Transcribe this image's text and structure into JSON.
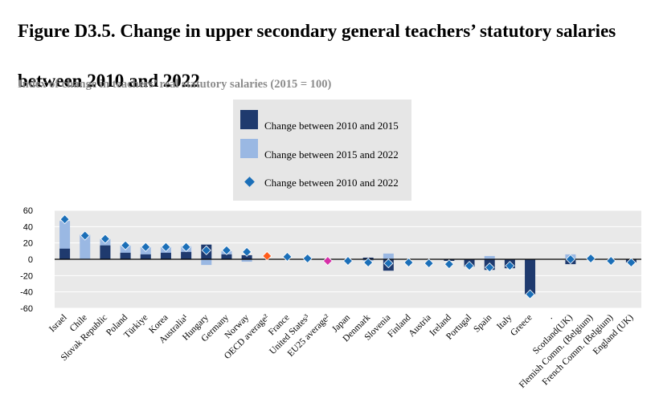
{
  "title": "Figure D3.5. Change in upper secondary general teachers’ statutory salaries between 2010 and 2022",
  "subtitle": "Index of change in teachers’ real statutory salaries (2015 = 100)",
  "colors": {
    "bar_2010_2015": "#1f3a6e",
    "bar_2015_2022": "#9ab8e3",
    "diamond": "#1b6fb8",
    "diamond_oecd": "#ff5c1a",
    "diamond_eu": "#d62fa8",
    "plot_bg": "#e9e9e9",
    "legend_bg": "#e6e6e6"
  },
  "legend": {
    "items": [
      {
        "label": "Change between 2010 and 2015",
        "marker": "dark-bar"
      },
      {
        "label": "Change between 2015 and 2022",
        "marker": "light-bar"
      },
      {
        "label": "Change between 2010 and 2022",
        "marker": "diamond"
      }
    ]
  },
  "chart_data": {
    "type": "bar",
    "ylim": [
      -60,
      60
    ],
    "yticks": [
      60,
      40,
      20,
      0,
      -20,
      -40,
      -60
    ],
    "grid": true,
    "legend_position": "top-center",
    "categories": [
      "Israel",
      "Chile",
      "Slovak Republic",
      "Poland",
      "Türkiye",
      "Korea",
      "Australia¹",
      "Hungary",
      "Germany",
      "Norway",
      "OECD average²",
      "France",
      "United States³",
      "EU25 average²",
      "Japan",
      "Denmark",
      "Slovenia",
      "Finland",
      "Austria",
      "Ireland",
      "Portugal",
      "Spain",
      "Italy",
      "Greece",
      ".",
      "Scotland(UK)",
      "Flemish Comm. (Belgium)",
      "French Comm. (Belgium)",
      "England (UK)"
    ],
    "series": [
      {
        "name": "Change between 2010 and 2015",
        "values": [
          13,
          null,
          17,
          8,
          6,
          8,
          9,
          18,
          6,
          5,
          null,
          null,
          null,
          null,
          null,
          2,
          -14,
          null,
          null,
          -2,
          -9,
          -13,
          -11,
          -43,
          null,
          -6,
          null,
          null,
          -4
        ]
      },
      {
        "name": "Change between 2015 and 2022",
        "values": [
          47,
          30,
          25,
          17,
          15,
          15,
          16,
          -7,
          10,
          -3,
          null,
          null,
          null,
          null,
          null,
          -2,
          7,
          null,
          null,
          null,
          null,
          4,
          null,
          null,
          null,
          6,
          null,
          null,
          null
        ]
      },
      {
        "name": "Change between 2010 and 2022",
        "values": [
          49,
          29,
          25,
          17,
          15,
          15,
          15,
          11,
          11,
          9,
          4,
          3,
          1,
          -2,
          -2,
          -4,
          -5,
          -4,
          -5,
          -6,
          -8,
          -10,
          -8,
          -43,
          null,
          0,
          1,
          -2,
          -4
        ]
      }
    ]
  }
}
